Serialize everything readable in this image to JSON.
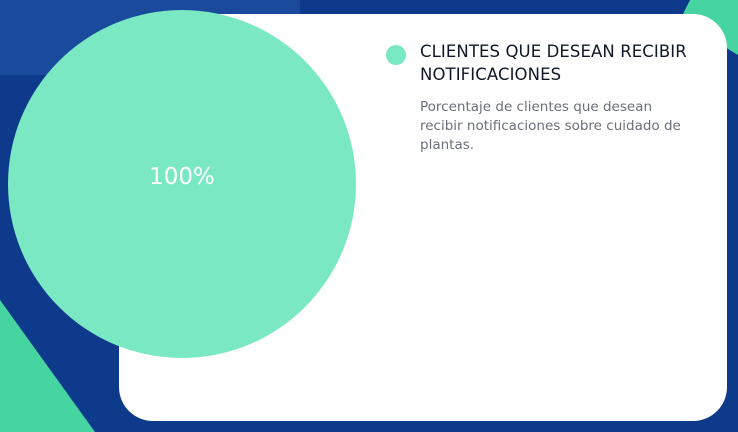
{
  "colors": {
    "background": "#0e3a8c",
    "card": "#ffffff",
    "accent": "#7be8c4",
    "accent_dark": "#46d4a0",
    "shape_light_blue": "#1a4a9c"
  },
  "chart_data": {
    "type": "pie",
    "slices": [
      {
        "label": "CLIENTES QUE DESEAN RECIBIR NOTIFICACIONES",
        "value": 100,
        "display": "100%",
        "description": "Porcentaje de clientes que desean recibir notificaciones sobre cuidado de plantas.",
        "color": "#7be8c4"
      }
    ],
    "legend_position": "right"
  }
}
